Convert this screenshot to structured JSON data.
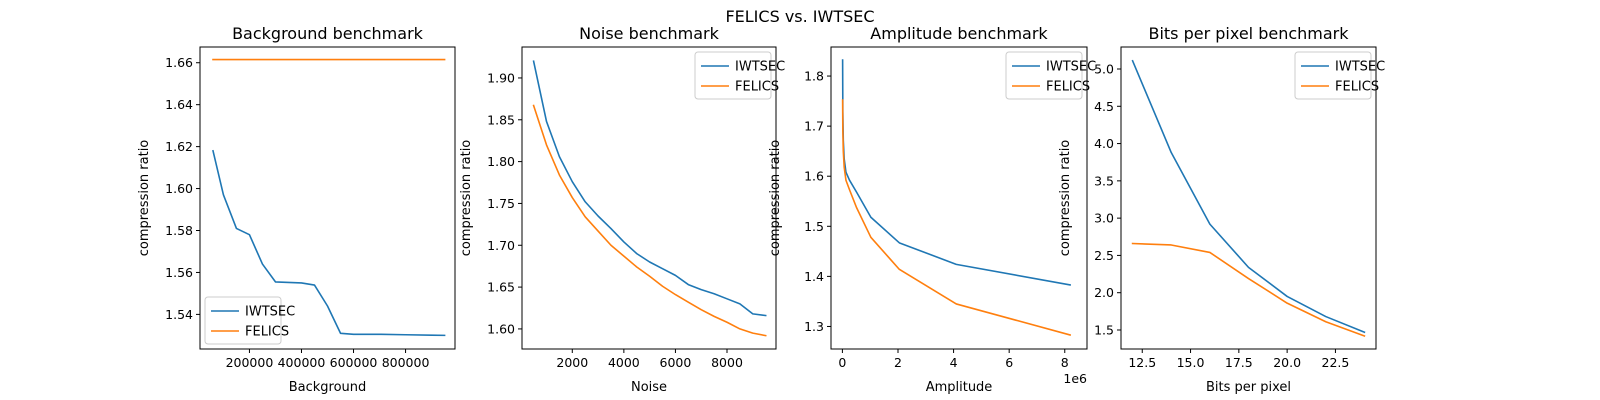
{
  "figure": {
    "title": "FELICS vs. IWTSEC"
  },
  "colors": {
    "IWTSEC": "#1f77b4",
    "FELICS": "#ff7f0e"
  },
  "chart_data": [
    {
      "type": "line",
      "title": "Background benchmark",
      "xlabel": "Background",
      "ylabel": "compression ratio",
      "xlim": [
        10000,
        990000
      ],
      "ylim": [
        1.5235,
        1.6675
      ],
      "xticks": [
        200000,
        400000,
        600000,
        800000
      ],
      "xtick_labels": [
        "200000",
        "400000",
        "600000",
        "800000"
      ],
      "yticks": [
        1.54,
        1.56,
        1.58,
        1.6,
        1.62,
        1.64,
        1.66
      ],
      "ytick_labels": [
        "1.54",
        "1.56",
        "1.58",
        "1.60",
        "1.62",
        "1.64",
        "1.66"
      ],
      "x_offset_label": "",
      "legend_loc": "lower-left",
      "series": [
        {
          "name": "IWTSEC",
          "x": [
            60000,
            100000,
            150000,
            200000,
            250000,
            300000,
            400000,
            450000,
            500000,
            550000,
            600000,
            700000,
            800000,
            900000,
            950000
          ],
          "y": [
            1.618,
            1.597,
            1.581,
            1.578,
            1.564,
            1.5555,
            1.555,
            1.554,
            1.544,
            1.531,
            1.5305,
            1.5305,
            1.5303,
            1.5301,
            1.53
          ]
        },
        {
          "name": "FELICS",
          "x": [
            60000,
            950000
          ],
          "y": [
            1.6615,
            1.6615
          ]
        }
      ]
    },
    {
      "type": "line",
      "title": "Noise benchmark",
      "xlabel": "Noise",
      "ylabel": "compression ratio",
      "xlim": [
        50,
        9900
      ],
      "ylim": [
        1.576,
        1.937
      ],
      "xticks": [
        2000,
        4000,
        6000,
        8000
      ],
      "xtick_labels": [
        "2000",
        "4000",
        "6000",
        "8000"
      ],
      "yticks": [
        1.6,
        1.65,
        1.7,
        1.75,
        1.8,
        1.85,
        1.9
      ],
      "ytick_labels": [
        "1.60",
        "1.65",
        "1.70",
        "1.75",
        "1.80",
        "1.85",
        "1.90"
      ],
      "x_offset_label": "",
      "legend_loc": "upper-right",
      "series": [
        {
          "name": "IWTSEC",
          "x": [
            500,
            1000,
            1500,
            2000,
            2500,
            3000,
            3500,
            4000,
            4500,
            5000,
            5500,
            6000,
            6500,
            7000,
            7500,
            8000,
            8500,
            9000,
            9500
          ],
          "y": [
            1.92,
            1.848,
            1.806,
            1.776,
            1.752,
            1.735,
            1.72,
            1.704,
            1.69,
            1.68,
            1.672,
            1.664,
            1.653,
            1.647,
            1.642,
            1.636,
            1.63,
            1.618,
            1.616
          ]
        },
        {
          "name": "FELICS",
          "x": [
            500,
            1000,
            1500,
            2000,
            2500,
            3000,
            3500,
            4000,
            4500,
            5000,
            5500,
            6000,
            6500,
            7000,
            7500,
            8000,
            8500,
            9000,
            9500
          ],
          "y": [
            1.867,
            1.82,
            1.784,
            1.757,
            1.734,
            1.717,
            1.7,
            1.687,
            1.674,
            1.663,
            1.651,
            1.641,
            1.632,
            1.623,
            1.615,
            1.608,
            1.6,
            1.595,
            1.592
          ]
        }
      ]
    },
    {
      "type": "line",
      "title": "Amplitude benchmark",
      "xlabel": "Amplitude",
      "ylabel": "compression ratio",
      "xlim": [
        -410000,
        8800000
      ],
      "ylim": [
        1.255,
        1.858
      ],
      "xticks": [
        0,
        2000000,
        4000000,
        6000000,
        8000000
      ],
      "xtick_labels": [
        "0",
        "2",
        "4",
        "6",
        "8"
      ],
      "yticks": [
        1.3,
        1.4,
        1.5,
        1.6,
        1.7,
        1.8
      ],
      "ytick_labels": [
        "1.3",
        "1.4",
        "1.5",
        "1.6",
        "1.7",
        "1.8"
      ],
      "x_offset_label": "1e6",
      "legend_loc": "upper-right",
      "series": [
        {
          "name": "IWTSEC",
          "x": [
            8000,
            16000,
            32000,
            64000,
            128000,
            256000,
            512000,
            1024000,
            2048000,
            4096000,
            8192000
          ],
          "y": [
            1.832,
            1.73,
            1.672,
            1.635,
            1.608,
            1.592,
            1.568,
            1.518,
            1.467,
            1.424,
            1.383
          ]
        },
        {
          "name": "FELICS",
          "x": [
            8000,
            16000,
            32000,
            64000,
            128000,
            256000,
            512000,
            1024000,
            2048000,
            4096000,
            8192000
          ],
          "y": [
            1.752,
            1.69,
            1.65,
            1.618,
            1.592,
            1.573,
            1.537,
            1.478,
            1.414,
            1.345,
            1.283
          ]
        }
      ]
    },
    {
      "type": "line",
      "title": "Bits per pixel benchmark",
      "xlabel": "Bits per pixel",
      "ylabel": "compression ratio",
      "xlim": [
        11.4,
        24.6
      ],
      "ylim": [
        1.245,
        5.295
      ],
      "xticks": [
        12.5,
        15.0,
        17.5,
        20.0,
        22.5
      ],
      "xtick_labels": [
        "12.5",
        "15.0",
        "17.5",
        "20.0",
        "22.5"
      ],
      "yticks": [
        1.5,
        2.0,
        2.5,
        3.0,
        3.5,
        4.0,
        4.5,
        5.0
      ],
      "ytick_labels": [
        "1.5",
        "2.0",
        "2.5",
        "3.0",
        "3.5",
        "4.0",
        "4.5",
        "5.0"
      ],
      "x_offset_label": "",
      "legend_loc": "upper-right",
      "series": [
        {
          "name": "IWTSEC",
          "x": [
            12,
            14,
            16,
            18,
            20,
            22,
            24
          ],
          "y": [
            5.11,
            3.88,
            2.92,
            2.34,
            1.95,
            1.68,
            1.47
          ]
        },
        {
          "name": "FELICS",
          "x": [
            12,
            14,
            16,
            18,
            20,
            22,
            24
          ],
          "y": [
            2.66,
            2.64,
            2.54,
            2.19,
            1.86,
            1.61,
            1.42
          ]
        }
      ]
    }
  ]
}
